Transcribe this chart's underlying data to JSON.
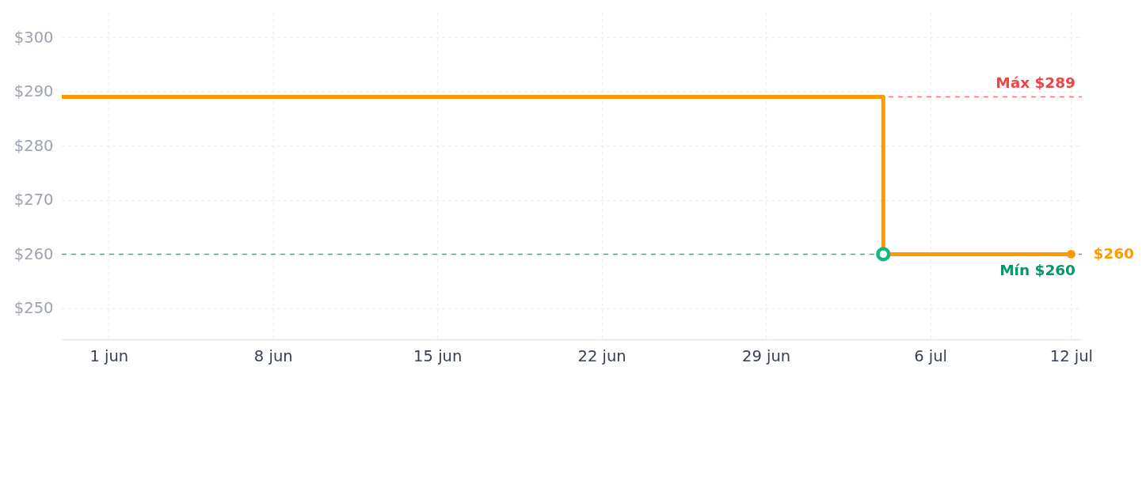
{
  "chart_data": {
    "type": "step",
    "x": [
      "--05-30",
      "--07-04",
      "--07-12"
    ],
    "series": [
      {
        "color": "#ff9900",
        "values": [
          289,
          260,
          260
        ]
      },
      {
        "type": "scatter",
        "color": "#10b981",
        "x": [
          "--07-04"
        ],
        "values": [
          260
        ]
      },
      {
        "type": "scatter",
        "color": "#ff9900",
        "x": [
          "--07-12"
        ],
        "values": [
          260
        ]
      }
    ],
    "xlim": [
      "--05-30",
      "--07-12T11:00"
    ],
    "xticks": [
      {
        "value": "--06-01",
        "label": "1 jun"
      },
      {
        "value": "--06-08",
        "label": "8 jun"
      },
      {
        "value": "--06-15",
        "label": "15 jun"
      },
      {
        "value": "--06-22",
        "label": "22 jun"
      },
      {
        "value": "--06-29",
        "label": "29 jun"
      },
      {
        "value": "--07-06",
        "label": "6 jul"
      },
      {
        "value": "--07-12",
        "label": "12 jul"
      }
    ],
    "ylim": [
      244.3,
      304.7
    ],
    "yticks": [
      {
        "value": 250,
        "label": "$250"
      },
      {
        "value": 260,
        "label": "$260"
      },
      {
        "value": 270,
        "label": "$270"
      },
      {
        "value": 280,
        "label": "$280"
      },
      {
        "value": 290,
        "label": "$290"
      },
      {
        "value": 300,
        "label": "$300"
      }
    ],
    "grid": true,
    "ref_lines": [
      {
        "axis": "y",
        "value": 289,
        "label": "Máx $289",
        "color": "#ef4444",
        "line_style": "dashed"
      },
      {
        "axis": "y",
        "value": 260,
        "label": "Mín $260",
        "color": "#059669",
        "line_style": "dashed"
      }
    ],
    "annotations": [
      {
        "text": "$260",
        "x": "--07-12",
        "y": 260
      }
    ]
  }
}
